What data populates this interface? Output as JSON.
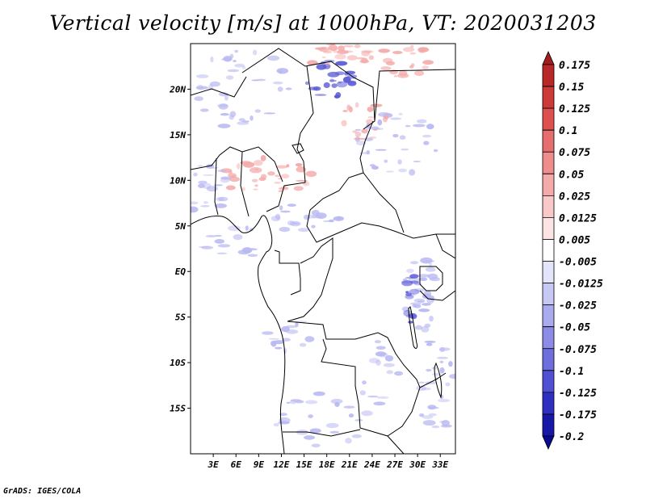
{
  "title": "Vertical velocity [m/s] at 1000hPa, VT: 2020031203",
  "footer": "GrADS: IGES/COLA",
  "map": {
    "lat_ticks": [
      "20N",
      "15N",
      "10N",
      "5N",
      "EQ",
      "5S",
      "10S",
      "15S"
    ],
    "lat_values": [
      20,
      15,
      10,
      5,
      0,
      -5,
      -10,
      -15
    ],
    "lon_ticks": [
      "3E",
      "6E",
      "9E",
      "12E",
      "15E",
      "18E",
      "21E",
      "24E",
      "27E",
      "30E",
      "33E"
    ],
    "lon_values": [
      3,
      6,
      9,
      12,
      15,
      18,
      21,
      24,
      27,
      30,
      33
    ],
    "lon_range": [
      0,
      35
    ],
    "lat_range": [
      -20,
      25
    ],
    "field_colors": {
      "positive": "#f4a9a8",
      "strong_positive": "#e06060",
      "negative": "#b9b9f2",
      "strong_negative": "#5a5ad6"
    }
  },
  "colorbar": {
    "labels": [
      "0.175",
      "0.15",
      "0.125",
      "0.1",
      "0.075",
      "0.05",
      "0.025",
      "0.0125",
      "0.005",
      "-0.005",
      "-0.0125",
      "-0.025",
      "-0.05",
      "-0.075",
      "-0.1",
      "-0.125",
      "-0.175",
      "-0.2"
    ],
    "colors": [
      "#a01e1e",
      "#b82828",
      "#cc3a3a",
      "#de5050",
      "#e76e6e",
      "#ef8c8c",
      "#f5aaaa",
      "#f9c8c8",
      "#fce4e4",
      "#ffffff",
      "#e4e4fb",
      "#c8c8f5",
      "#aaaaef",
      "#8c8ce7",
      "#6e6edf",
      "#5050d5",
      "#3030c0",
      "#1818a8",
      "#0a0a90"
    ]
  }
}
